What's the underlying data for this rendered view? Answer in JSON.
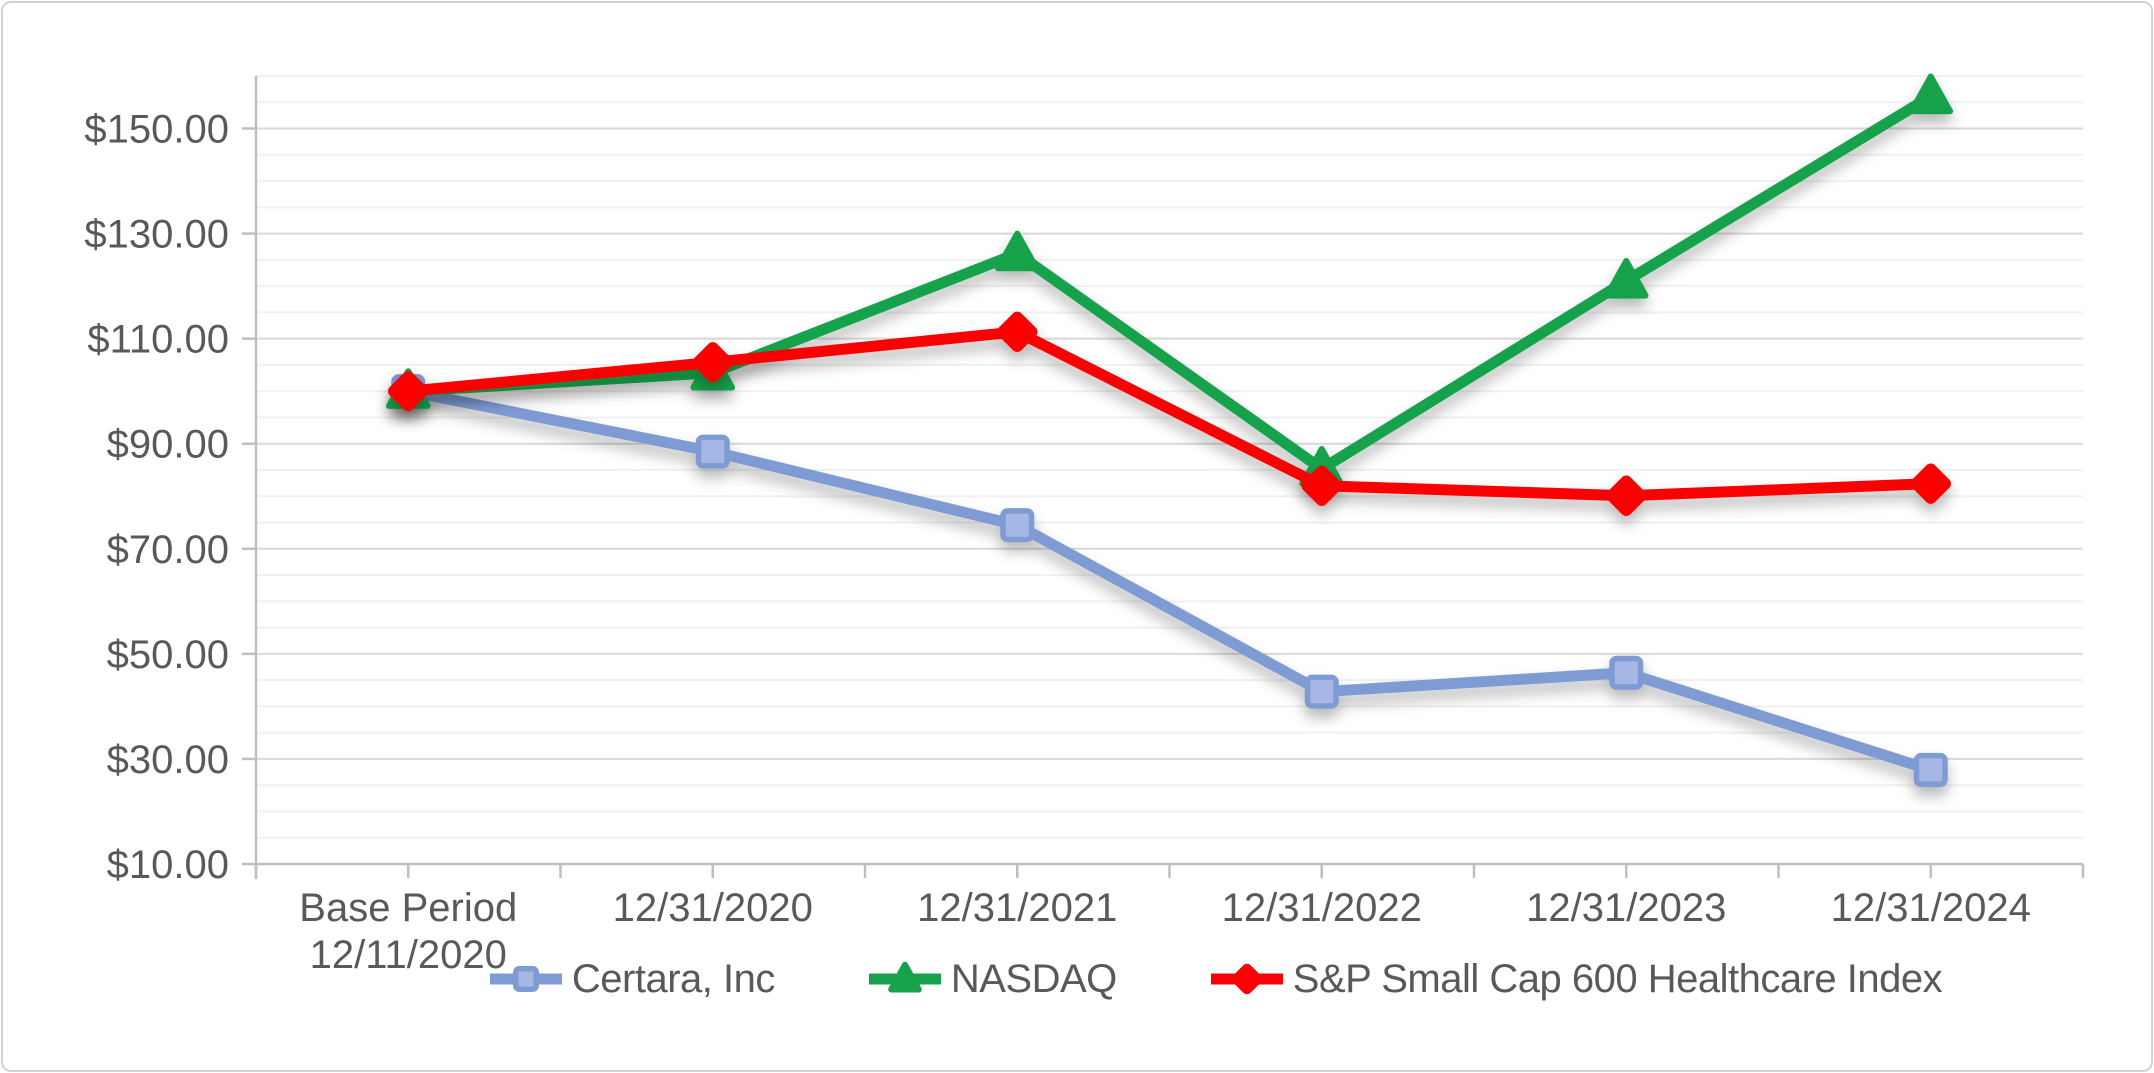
{
  "chart_data": {
    "type": "line",
    "title": "",
    "x_labels": [
      [
        "Base Period",
        "12/11/2020"
      ],
      [
        "12/31/2020"
      ],
      [
        "12/31/2021"
      ],
      [
        "12/31/2022"
      ],
      [
        "12/31/2023"
      ],
      [
        "12/31/2024"
      ]
    ],
    "series": [
      {
        "name": "Certara, Inc",
        "marker": "square",
        "color": "#7E9BD4",
        "marker_fill": "#A6B7E6",
        "values": [
          100.0,
          88.5,
          74.5,
          42.8,
          46.4,
          27.9
        ]
      },
      {
        "name": "NASDAQ",
        "marker": "triangle",
        "color": "#17A24B",
        "marker_fill": "#17A24B",
        "values": [
          100.0,
          103.5,
          126.2,
          85.2,
          121.0,
          156.1
        ]
      },
      {
        "name": "S&P Small Cap 600 Healthcare Index",
        "marker": "diamond",
        "color": "#FB0006",
        "marker_fill": "#FB0006",
        "values": [
          100.0,
          105.5,
          111.3,
          82.0,
          80.1,
          82.4
        ]
      }
    ],
    "y_axis": {
      "min": 10,
      "max": 160,
      "major_step": 20,
      "minor_step": 5,
      "tick_labels": [
        "$10.00",
        "$30.00",
        "$50.00",
        "$70.00",
        "$90.00",
        "$110.00",
        "$130.00",
        "$150.00"
      ]
    },
    "xlabel": "",
    "ylabel": "",
    "grid": {
      "major_color": "#d9d9d9",
      "minor_color": "#f1f1f1",
      "axis_color": "#bfbfbf"
    },
    "legend_position": "bottom",
    "text_color": "#595959"
  }
}
